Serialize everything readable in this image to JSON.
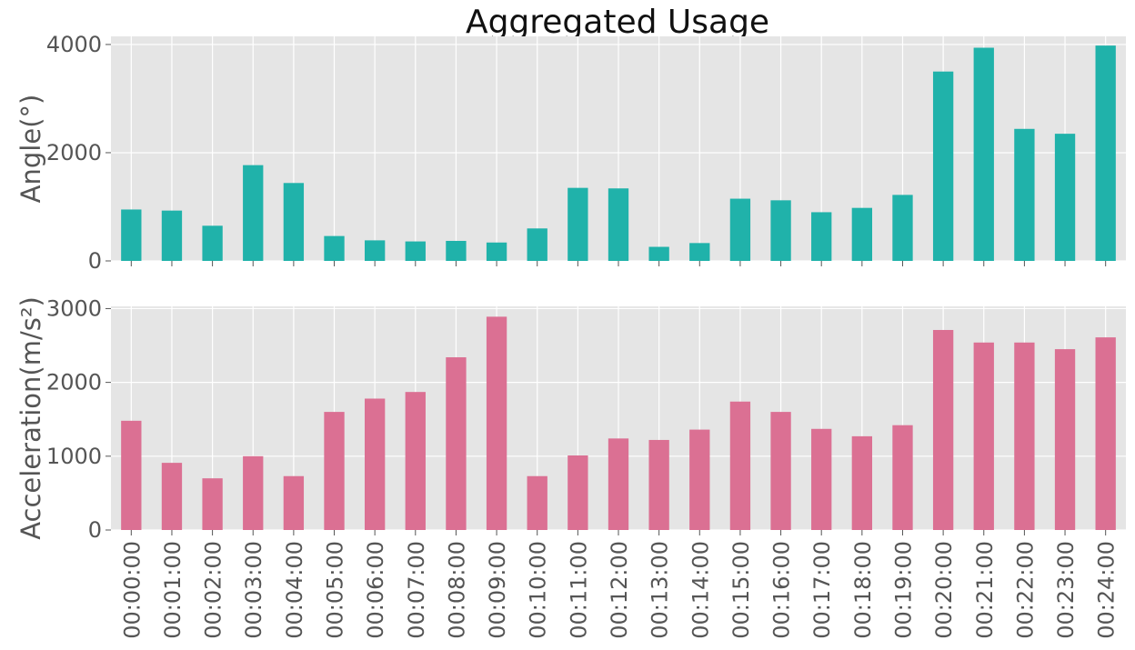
{
  "chart_data": {
    "type": "bar",
    "title": "Aggregated Usage",
    "categories": [
      "00:00:00",
      "00:01:00",
      "00:02:00",
      "00:03:00",
      "00:04:00",
      "00:05:00",
      "00:06:00",
      "00:07:00",
      "00:08:00",
      "00:09:00",
      "00:10:00",
      "00:11:00",
      "00:12:00",
      "00:13:00",
      "00:14:00",
      "00:15:00",
      "00:16:00",
      "00:17:00",
      "00:18:00",
      "00:19:00",
      "00:20:00",
      "00:21:00",
      "00:22:00",
      "00:23:00",
      "00:24:00"
    ],
    "grid": true,
    "panels": [
      {
        "ylabel": "Angle(°)",
        "color": "#20b2aa",
        "ylim": [
          0,
          4150
        ],
        "yticks": [
          0,
          2000,
          4000
        ],
        "values": [
          950,
          930,
          650,
          1770,
          1440,
          460,
          380,
          360,
          370,
          340,
          600,
          1350,
          1340,
          260,
          330,
          1150,
          1120,
          900,
          980,
          1220,
          3500,
          3940,
          2440,
          2350,
          3980
        ]
      },
      {
        "ylabel": "Acceleration(m/s²)",
        "color": "#db7093",
        "ylim": [
          0,
          3030
        ],
        "yticks": [
          0,
          1000,
          2000,
          3000
        ],
        "values": [
          1480,
          910,
          700,
          1000,
          730,
          1600,
          1780,
          1870,
          2340,
          2890,
          730,
          1010,
          1240,
          1220,
          1360,
          1740,
          1600,
          1370,
          1270,
          1420,
          2710,
          2540,
          2540,
          2450,
          2610
        ]
      }
    ]
  }
}
